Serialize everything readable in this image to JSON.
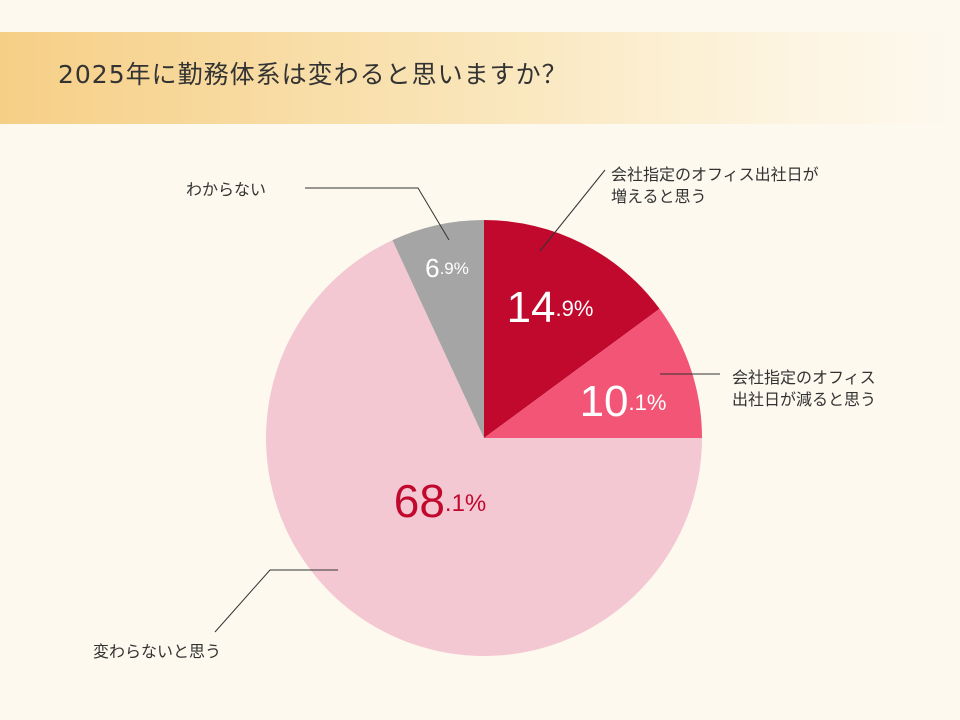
{
  "title": "2025年に勤務体系は変わると思いますか？",
  "chart_data": {
    "type": "pie",
    "title": "2025年に勤務体系は変わると思いますか？",
    "slices": [
      {
        "label_lines": [
          "会社指定のオフィス出社日が",
          "増えると思う"
        ],
        "int": "14",
        "dec": ".9%",
        "value": 14.9,
        "color": "#c1092e",
        "text_color": "#ffffff"
      },
      {
        "label_lines": [
          "会社指定のオフィス",
          "出社日が減ると思う"
        ],
        "int": "10",
        "dec": ".1%",
        "value": 10.1,
        "color": "#f25575",
        "text_color": "#ffffff"
      },
      {
        "label_lines": [
          "変わらないと思う"
        ],
        "int": "68",
        "dec": ".1%",
        "value": 68.1,
        "color": "#f3c8d3",
        "text_color": "#c1092e"
      },
      {
        "label_lines": [
          "わからない"
        ],
        "int": "6",
        "dec": ".9%",
        "value": 6.9,
        "color": "#a5a5a5",
        "text_color": "#ffffff"
      }
    ]
  }
}
